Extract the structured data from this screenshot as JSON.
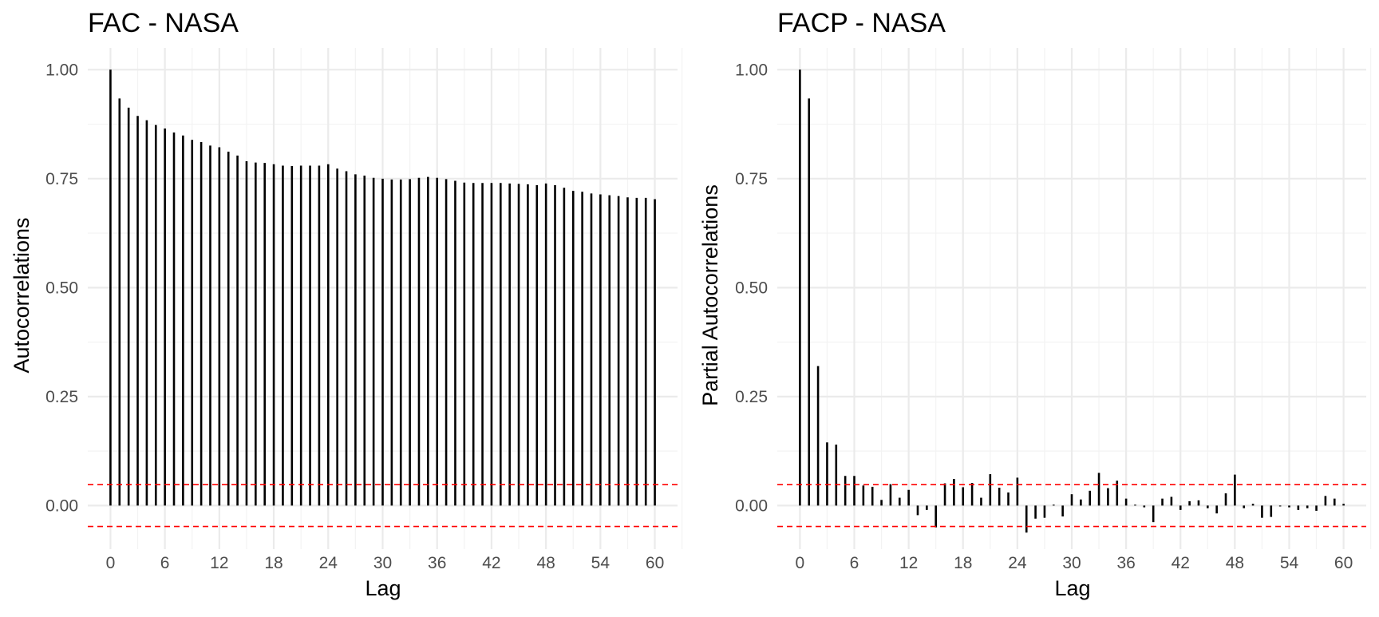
{
  "chart_data": [
    {
      "type": "bar",
      "title": "FAC - NASA",
      "xlabel": "Lag",
      "ylabel": "Autocorrelations",
      "xlim": [
        -2.5,
        62.5
      ],
      "ylim": [
        -0.1,
        1.05
      ],
      "x_ticks": [
        0,
        6,
        12,
        18,
        24,
        30,
        36,
        42,
        48,
        54,
        60
      ],
      "y_ticks": [
        0.0,
        0.25,
        0.5,
        0.75,
        1.0
      ],
      "y_tick_labels": [
        "0.00",
        "0.25",
        "0.50",
        "0.75",
        "1.00"
      ],
      "x_tick_labels": [
        "0",
        "6",
        "12",
        "18",
        "24",
        "30",
        "36",
        "42",
        "48",
        "54",
        "60"
      ],
      "confidence_bound": 0.048,
      "grid": true,
      "x": [
        0,
        1,
        2,
        3,
        4,
        5,
        6,
        7,
        8,
        9,
        10,
        11,
        12,
        13,
        14,
        15,
        16,
        17,
        18,
        19,
        20,
        21,
        22,
        23,
        24,
        25,
        26,
        27,
        28,
        29,
        30,
        31,
        32,
        33,
        34,
        35,
        36,
        37,
        38,
        39,
        40,
        41,
        42,
        43,
        44,
        45,
        46,
        47,
        48,
        49,
        50,
        51,
        52,
        53,
        54,
        55,
        56,
        57,
        58,
        59,
        60
      ],
      "values": [
        1.0,
        0.934,
        0.913,
        0.894,
        0.884,
        0.873,
        0.865,
        0.856,
        0.849,
        0.839,
        0.834,
        0.826,
        0.822,
        0.812,
        0.803,
        0.79,
        0.787,
        0.786,
        0.783,
        0.78,
        0.779,
        0.78,
        0.78,
        0.78,
        0.783,
        0.773,
        0.767,
        0.76,
        0.757,
        0.752,
        0.75,
        0.748,
        0.748,
        0.749,
        0.752,
        0.754,
        0.752,
        0.749,
        0.745,
        0.741,
        0.74,
        0.74,
        0.74,
        0.74,
        0.739,
        0.738,
        0.737,
        0.735,
        0.739,
        0.735,
        0.729,
        0.722,
        0.72,
        0.716,
        0.714,
        0.712,
        0.71,
        0.707,
        0.706,
        0.706,
        0.703
      ]
    },
    {
      "type": "bar",
      "title": "FACP - NASA",
      "xlabel": "Lag",
      "ylabel": "Partial Autocorrelations",
      "xlim": [
        -2.5,
        62.5
      ],
      "ylim": [
        -0.1,
        1.05
      ],
      "x_ticks": [
        0,
        6,
        12,
        18,
        24,
        30,
        36,
        42,
        48,
        54,
        60
      ],
      "y_ticks": [
        0.0,
        0.25,
        0.5,
        0.75,
        1.0
      ],
      "y_tick_labels": [
        "0.00",
        "0.25",
        "0.50",
        "0.75",
        "1.00"
      ],
      "x_tick_labels": [
        "0",
        "6",
        "12",
        "18",
        "24",
        "30",
        "36",
        "42",
        "48",
        "54",
        "60"
      ],
      "confidence_bound": 0.048,
      "grid": true,
      "x": [
        0,
        1,
        2,
        3,
        4,
        5,
        6,
        7,
        8,
        9,
        10,
        11,
        12,
        13,
        14,
        15,
        16,
        17,
        18,
        19,
        20,
        21,
        22,
        23,
        24,
        25,
        26,
        27,
        28,
        29,
        30,
        31,
        32,
        33,
        34,
        35,
        36,
        37,
        38,
        39,
        40,
        41,
        42,
        43,
        44,
        45,
        46,
        47,
        48,
        49,
        50,
        51,
        52,
        53,
        54,
        55,
        56,
        57,
        58,
        59,
        60
      ],
      "values": [
        1.0,
        0.934,
        0.32,
        0.145,
        0.14,
        0.068,
        0.068,
        0.046,
        0.043,
        0.013,
        0.049,
        0.018,
        0.036,
        -0.022,
        -0.01,
        -0.05,
        0.051,
        0.061,
        0.042,
        0.052,
        0.018,
        0.072,
        0.041,
        0.03,
        0.064,
        -0.062,
        -0.03,
        -0.028,
        0.002,
        -0.025,
        0.026,
        0.014,
        0.034,
        0.075,
        0.04,
        0.057,
        0.016,
        0.002,
        -0.004,
        -0.038,
        0.016,
        0.02,
        -0.01,
        0.01,
        0.012,
        -0.006,
        -0.018,
        0.028,
        0.071,
        -0.006,
        0.004,
        -0.028,
        -0.026,
        -0.002,
        -0.004,
        -0.01,
        -0.006,
        -0.012,
        0.022,
        0.016,
        0.004
      ]
    }
  ]
}
